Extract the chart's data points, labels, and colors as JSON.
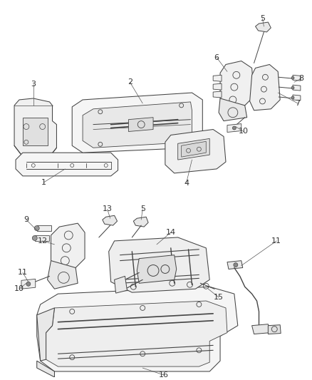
{
  "background_color": "#ffffff",
  "line_color": "#444444",
  "label_color": "#333333",
  "fig_width": 4.38,
  "fig_height": 5.33,
  "dpi": 100
}
